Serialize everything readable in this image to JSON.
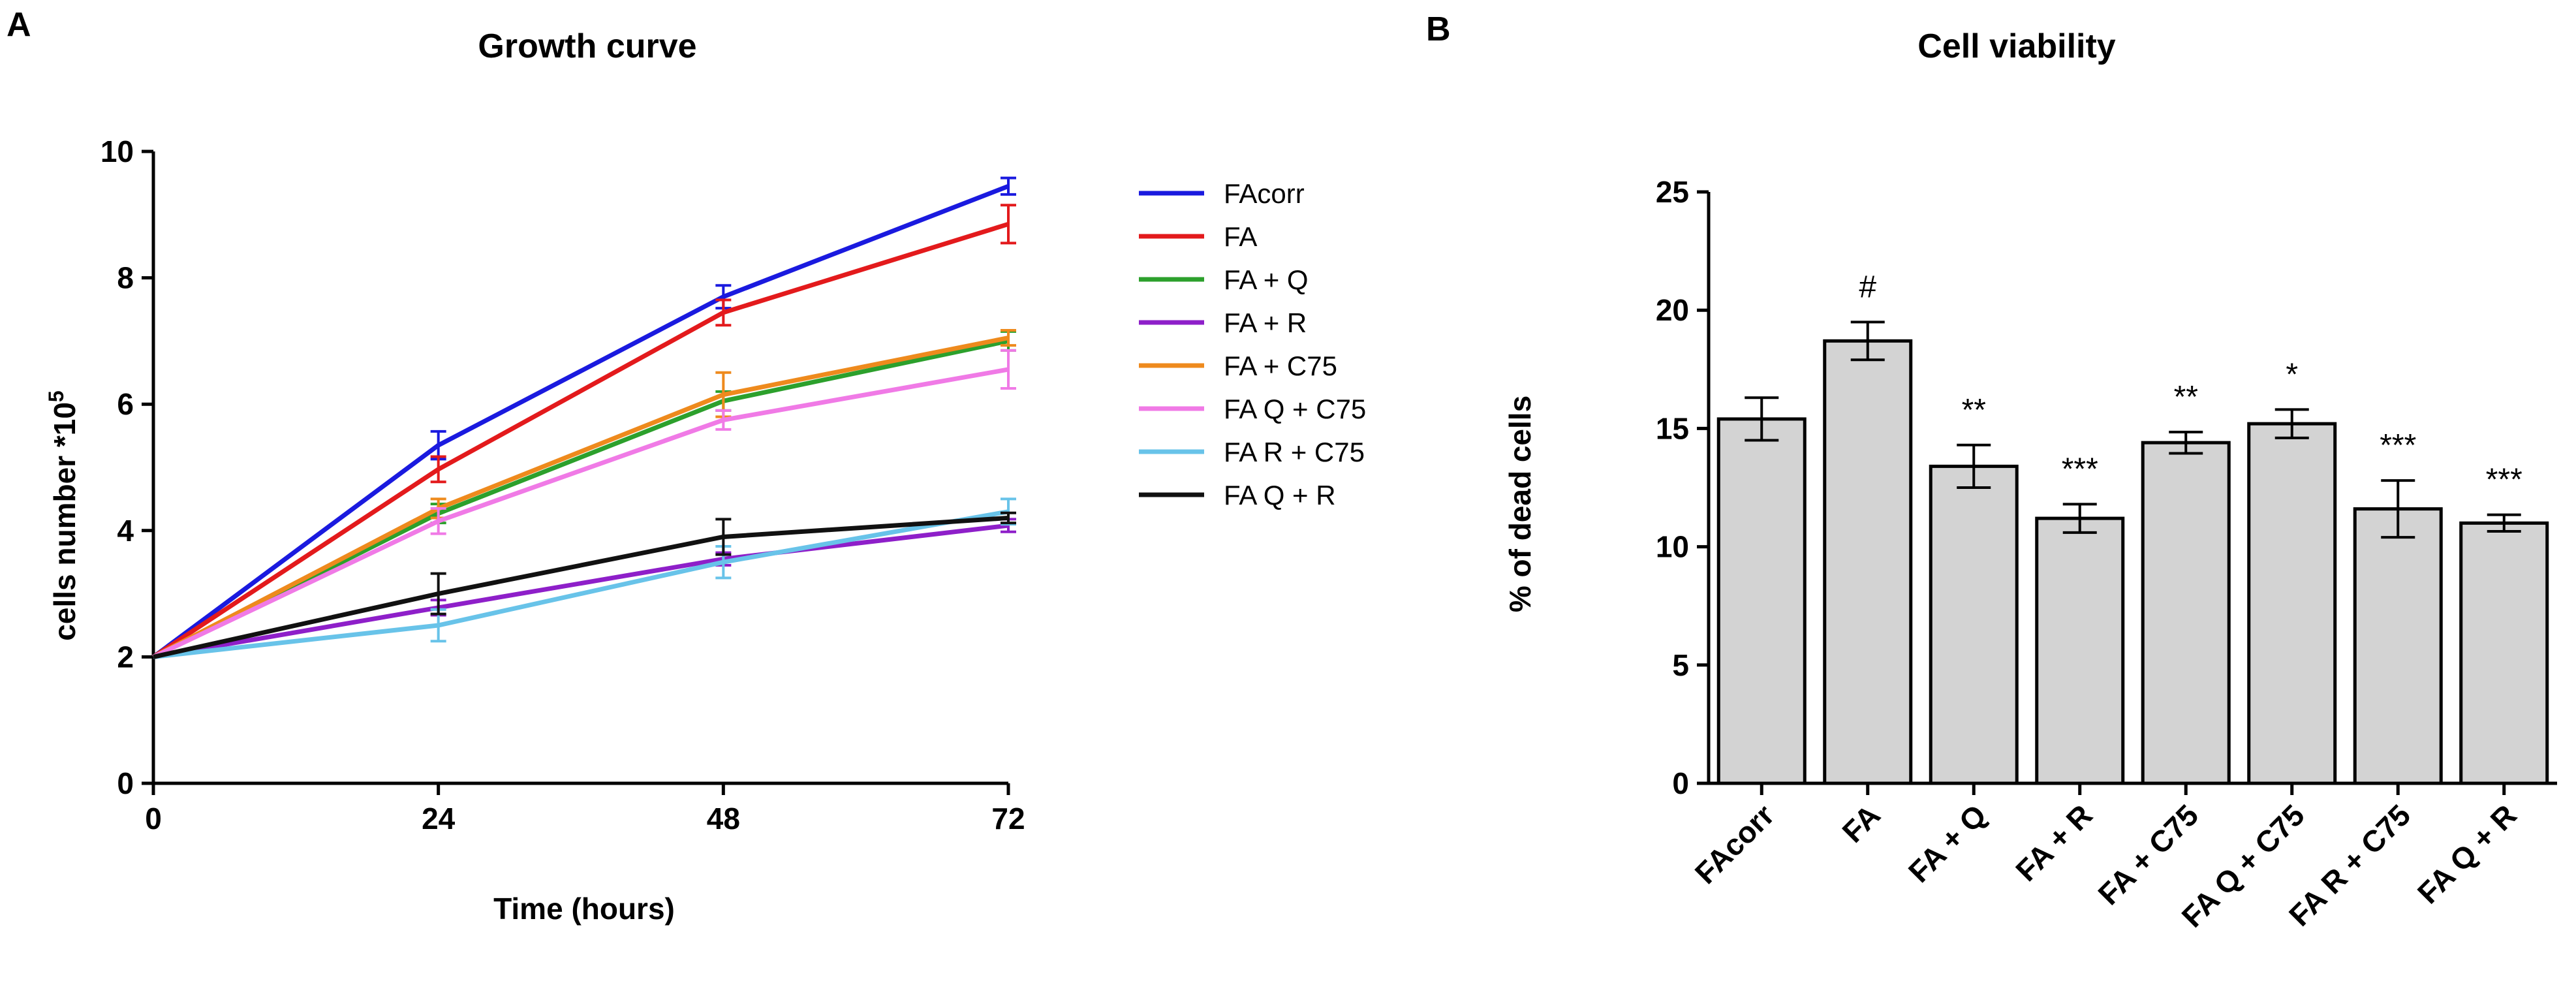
{
  "panels": {
    "a_letter": "A",
    "b_letter": "B"
  },
  "chart_data": [
    {
      "type": "line",
      "title": "Growth curve",
      "xlabel": "Time (hours)",
      "ylabel_main": "cells number *10",
      "ylabel_sup": "5",
      "x": [
        0,
        24,
        48,
        72
      ],
      "xlim": [
        0,
        72
      ],
      "ylim": [
        0,
        10
      ],
      "xticks": [
        0,
        24,
        48,
        72
      ],
      "yticks": [
        0,
        2,
        4,
        6,
        8,
        10
      ],
      "grid": false,
      "legend_position": "right",
      "series": [
        {
          "name": "FAcorr",
          "color": "#1a1adf",
          "values": [
            2,
            5.35,
            7.7,
            9.45
          ],
          "errors": [
            0,
            0.22,
            0.18,
            0.13
          ]
        },
        {
          "name": "FA",
          "color": "#e31a1c",
          "values": [
            2,
            4.97,
            7.45,
            8.85
          ],
          "errors": [
            0,
            0.2,
            0.2,
            0.3
          ]
        },
        {
          "name": "FA + Q",
          "color": "#2ca02c",
          "values": [
            2,
            4.27,
            6.05,
            7.0
          ],
          "errors": [
            0,
            0.15,
            0.15,
            0.15
          ]
        },
        {
          "name": "FA + R",
          "color": "#8e1fc9",
          "values": [
            2,
            2.78,
            3.55,
            4.08
          ],
          "errors": [
            0,
            0.12,
            0.1,
            0.1
          ]
        },
        {
          "name": "FA + C75",
          "color": "#ee8a1d",
          "values": [
            2,
            4.35,
            6.15,
            7.05
          ],
          "errors": [
            0,
            0.15,
            0.35,
            0.12
          ]
        },
        {
          "name": "FA Q + C75",
          "color": "#f07ae6",
          "values": [
            2,
            4.15,
            5.75,
            6.55
          ],
          "errors": [
            0,
            0.2,
            0.15,
            0.3
          ]
        },
        {
          "name": "FA R + C75",
          "color": "#68c3e9",
          "values": [
            2,
            2.5,
            3.5,
            4.3
          ],
          "errors": [
            0,
            0.25,
            0.25,
            0.2
          ]
        },
        {
          "name": "FA Q + R",
          "color": "#111111",
          "values": [
            2,
            3.0,
            3.9,
            4.2
          ],
          "errors": [
            0,
            0.32,
            0.28,
            0.08
          ]
        }
      ]
    },
    {
      "type": "bar",
      "title": "Cell viability",
      "xlabel": "",
      "ylabel": "% of dead cells",
      "ylim": [
        0,
        25
      ],
      "yticks": [
        0,
        5,
        10,
        15,
        20,
        25
      ],
      "grid": false,
      "bar_color": "#d3d3d3",
      "categories": [
        "FAcorr",
        "FA",
        "FA + Q",
        "FA + R",
        "FA + C75",
        "FA Q + C75",
        "FA R + C75",
        "FA Q + R"
      ],
      "values": [
        15.4,
        18.7,
        13.4,
        11.2,
        14.4,
        15.2,
        11.6,
        11.0
      ],
      "errors": [
        0.9,
        0.8,
        0.9,
        0.6,
        0.45,
        0.6,
        1.2,
        0.35
      ],
      "annotations": [
        "",
        "#",
        "**",
        "***",
        "**",
        "*",
        "***",
        "***"
      ]
    }
  ]
}
